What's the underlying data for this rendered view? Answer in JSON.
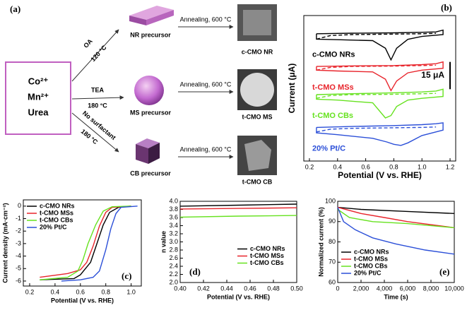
{
  "scheme": {
    "panel_label": "(a)",
    "ions": [
      "Co²⁺",
      "Mn²⁺",
      "Urea"
    ],
    "routes": [
      {
        "agent": "OA",
        "temperature": "120 °C",
        "precursor": "NR precursor",
        "treatment": "Annealing, 600 °C",
        "product": "c-CMO NR"
      },
      {
        "agent": "TEA",
        "temperature": "180 °C",
        "precursor": "MS precursor",
        "treatment": "Annealing, 600 °C",
        "product": "t-CMO MS"
      },
      {
        "agent": "No surfactant",
        "temperature": "180 °C",
        "precursor": "CB precursor",
        "treatment": "Annealing, 600 °C",
        "product": "t-CMO CB"
      }
    ]
  },
  "chart_data": [
    {
      "type": "line",
      "panel_label": "(b)",
      "xlabel": "Potential (V vs. RHE)",
      "ylabel": "Current  (μA)",
      "xlim": [
        0.16,
        1.24
      ],
      "ylim": [
        0,
        80
      ],
      "xticks": [
        0.2,
        0.4,
        0.6,
        0.8,
        {
          "value": 1,
          "label": "1.0"
        },
        1.2
      ],
      "legend": "inline",
      "scale_bar": {
        "value": 15,
        "label": "15 μA"
      },
      "series": [
        {
          "name": "c-CMO NRs",
          "color": "#000000",
          "x": [
            0.25,
            0.5,
            0.8,
            1.0,
            1.1,
            1.15,
            1.15,
            1.0,
            0.9,
            0.82,
            0.78,
            0.74,
            0.65,
            0.4,
            0.25,
            0.25
          ],
          "values": [
            70,
            70.3,
            70.5,
            70.8,
            71,
            72,
            69.5,
            68.5,
            66.9,
            62,
            55.6,
            62,
            66.2,
            66.7,
            67,
            70
          ]
        },
        {
          "color": "#000000",
          "dash": true,
          "x": [
            0.25,
            0.35,
            0.5,
            0.8,
            1.0,
            1.1
          ],
          "values": [
            67,
            69,
            69.5,
            69.8,
            70,
            70.2
          ]
        },
        {
          "name": "t-CMO MSs",
          "color": "#e8242b",
          "x": [
            0.25,
            0.5,
            0.8,
            1.0,
            1.1,
            1.15,
            1.15,
            1.0,
            0.9,
            0.82,
            0.78,
            0.74,
            0.65,
            0.4,
            0.25,
            0.25
          ],
          "values": [
            52,
            52.3,
            52.5,
            53,
            53.5,
            54.5,
            51,
            50,
            48.5,
            44,
            38.7,
            45,
            49,
            49.5,
            50,
            52
          ]
        },
        {
          "color": "#e8242b",
          "dash": true,
          "x": [
            0.25,
            0.35,
            0.5,
            0.8,
            1.0,
            1.1
          ],
          "values": [
            50,
            51.5,
            52,
            52.2,
            52.5,
            52.7
          ]
        },
        {
          "name": "t-CMO CBs",
          "color": "#66e21f",
          "x": [
            0.25,
            0.5,
            0.8,
            1.0,
            1.1,
            1.15,
            1.15,
            1.0,
            0.9,
            0.82,
            0.78,
            0.74,
            0.65,
            0.4,
            0.25,
            0.25
          ],
          "values": [
            36.5,
            37,
            37.5,
            38,
            38.5,
            39.5,
            35.5,
            34.5,
            33.5,
            30,
            25,
            23.7,
            32,
            33.5,
            34,
            36.5
          ]
        },
        {
          "color": "#66e21f",
          "dash": true,
          "x": [
            0.25,
            0.35,
            0.5,
            0.8,
            1.0,
            1.1
          ],
          "values": [
            34.5,
            36,
            36.5,
            36.7,
            37,
            37.2
          ]
        },
        {
          "name": "20% Pt/C",
          "color": "#2b4fd8",
          "x": [
            0.25,
            0.5,
            0.8,
            1.0,
            1.1,
            1.15,
            1.15,
            1.0,
            0.9,
            0.85,
            0.8,
            0.75,
            0.65,
            0.4,
            0.25,
            0.25
          ],
          "values": [
            18.5,
            19,
            19.5,
            20,
            20.5,
            21,
            17,
            14,
            10,
            8.6,
            9.2,
            10.5,
            12.5,
            14.5,
            15.5,
            18.5
          ]
        },
        {
          "color": "#2b4fd8",
          "dash": true,
          "x": [
            0.25,
            0.35,
            0.5,
            0.8,
            1.0,
            1.1
          ],
          "values": [
            16,
            17.5,
            18,
            18.3,
            18.5,
            18.7
          ]
        }
      ]
    },
    {
      "type": "line",
      "panel_label": "(c)",
      "xlabel": "Potential (V vs. RHE)",
      "ylabel": "Current density (mA·cm⁻²)",
      "xlim": [
        0.15,
        1.08
      ],
      "ylim": [
        -6.4,
        0.5
      ],
      "xticks": [
        0.2,
        0.4,
        0.6,
        0.8,
        {
          "value": 1,
          "label": "1.0"
        }
      ],
      "yticks": [
        0,
        -1,
        -2,
        -3,
        -4,
        -5,
        -6
      ],
      "legend": "upper left",
      "series": [
        {
          "name": "c-CMO NRs",
          "color": "#000000",
          "x": [
            0.28,
            0.55,
            0.6,
            0.68,
            0.73,
            0.78,
            0.83,
            0.9,
            1.0
          ],
          "values": [
            -5.9,
            -5.8,
            -5.5,
            -4.5,
            -3,
            -1.5,
            -0.5,
            -0.1,
            0
          ]
        },
        {
          "name": "t-CMO MSs",
          "color": "#e8242b",
          "x": [
            0.28,
            0.5,
            0.6,
            0.65,
            0.7,
            0.75,
            0.8,
            0.85,
            1.0
          ],
          "values": [
            -5.7,
            -5.4,
            -5.1,
            -4.5,
            -3.2,
            -1.6,
            -0.5,
            -0.1,
            0
          ]
        },
        {
          "name": "t-CMO CBs",
          "color": "#66e21f",
          "x": [
            0.28,
            0.5,
            0.58,
            0.62,
            0.66,
            0.72,
            0.78,
            0.85,
            1.0
          ],
          "values": [
            -5.9,
            -5.7,
            -5.2,
            -4.3,
            -3,
            -1.5,
            -0.4,
            -0.05,
            0
          ]
        },
        {
          "name": "20% Pt/C",
          "color": "#2b4fd8",
          "x": [
            0.45,
            0.6,
            0.7,
            0.75,
            0.8,
            0.84,
            0.88,
            0.92,
            1.05
          ],
          "values": [
            -6,
            -5.9,
            -5.7,
            -5.2,
            -3.5,
            -1.8,
            -0.6,
            -0.1,
            0
          ]
        }
      ]
    },
    {
      "type": "line",
      "panel_label": "(d)",
      "xlabel": "Potential (V vs. RHE)",
      "ylabel": "n value",
      "xlim": [
        0.4,
        0.5
      ],
      "ylim": [
        2,
        4
      ],
      "xticks": [
        {
          "value": 0.4,
          "label": "0.40"
        },
        0.42,
        0.44,
        0.46,
        0.48,
        {
          "value": 0.5,
          "label": "0.50"
        }
      ],
      "yticks": [
        {
          "value": 2,
          "label": "2.0"
        },
        2.2,
        2.4,
        2.6,
        2.8,
        {
          "value": 3,
          "label": "3.0"
        },
        3.2,
        3.4,
        3.6,
        3.8,
        {
          "value": 4,
          "label": "4.0"
        }
      ],
      "legend": "center right",
      "series": [
        {
          "name": "c-CMO NRs",
          "color": "#000000",
          "x": [
            0.4,
            0.45,
            0.5
          ],
          "values": [
            3.88,
            3.905,
            3.93
          ]
        },
        {
          "name": "t-CMO MSs",
          "color": "#e8242b",
          "x": [
            0.4,
            0.45,
            0.5
          ],
          "values": [
            3.81,
            3.825,
            3.84
          ]
        },
        {
          "name": "t-CMO CBs",
          "color": "#66e21f",
          "x": [
            0.4,
            0.45,
            0.5
          ],
          "values": [
            3.61,
            3.635,
            3.65
          ]
        }
      ]
    },
    {
      "type": "line",
      "panel_label": "(e)",
      "xlabel": "Time (s)",
      "ylabel": "Normalized current (%)",
      "xlim": [
        0,
        10000
      ],
      "ylim": [
        60,
        100
      ],
      "xticks": [
        0,
        {
          "value": 2000,
          "label": "2,000"
        },
        {
          "value": 4000,
          "label": "4,000"
        },
        {
          "value": 6000,
          "label": "6,000"
        },
        {
          "value": 8000,
          "label": "8,000"
        },
        {
          "value": 10000,
          "label": "10,000"
        }
      ],
      "yticks": [
        60,
        70,
        80,
        90,
        100
      ],
      "legend": "lower left",
      "series": [
        {
          "name": "c-CMO NRs",
          "color": "#000000",
          "x": [
            0,
            2000,
            6000,
            10000
          ],
          "values": [
            97,
            96,
            95,
            94
          ]
        },
        {
          "name": "t-CMO MSs",
          "color": "#e8242b",
          "x": [
            0,
            2000,
            4000,
            6000,
            10000
          ],
          "values": [
            97,
            94,
            92,
            90,
            87
          ]
        },
        {
          "name": "t-CMO CBs",
          "color": "#66e21f",
          "x": [
            0,
            1000,
            3000,
            6000,
            10000
          ],
          "values": [
            96,
            92,
            90,
            89,
            87
          ]
        },
        {
          "name": "20% Pt/C",
          "color": "#2b4fd8",
          "x": [
            0,
            500,
            1500,
            3000,
            5000,
            7500,
            10000
          ],
          "values": [
            97,
            90,
            86,
            82,
            79,
            76,
            74
          ]
        }
      ]
    }
  ]
}
